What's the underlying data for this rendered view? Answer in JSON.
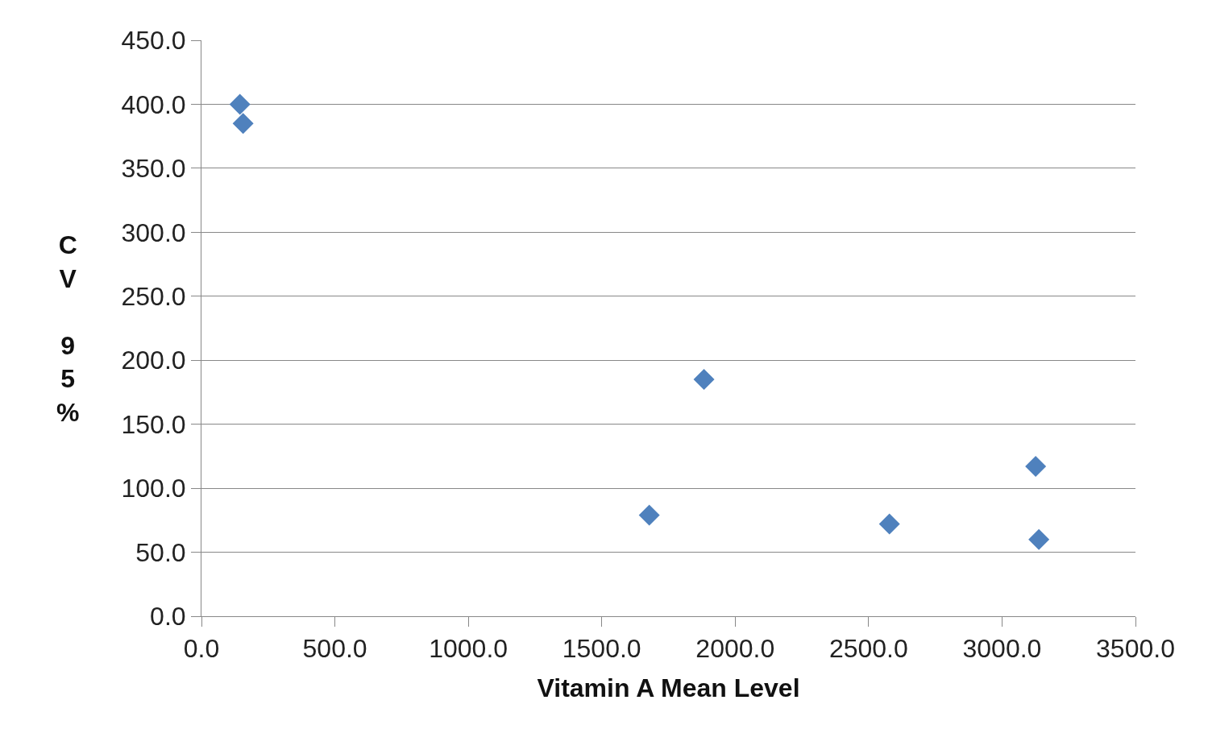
{
  "chart_data": {
    "type": "scatter",
    "xlabel": "Vitamin A Mean Level",
    "ylabel": "CV 95%",
    "x": [
      144,
      156,
      1678,
      1883,
      2578,
      3126,
      3138
    ],
    "series": [
      {
        "color": "#4f81bd",
        "values": [
          400,
          385,
          79,
          185,
          72,
          117,
          60
        ]
      }
    ],
    "xlim": [
      0,
      3500
    ],
    "ylim": [
      0,
      450
    ],
    "xticks": [
      {
        "value": 0,
        "label": "0.0"
      },
      {
        "value": 500,
        "label": "500.0"
      },
      {
        "value": 1000,
        "label": "1000.0"
      },
      {
        "value": 1500,
        "label": "1500.0"
      },
      {
        "value": 2000,
        "label": "2000.0"
      },
      {
        "value": 2500,
        "label": "2500.0"
      },
      {
        "value": 3000,
        "label": "3000.0"
      },
      {
        "value": 3500,
        "label": "3500.0"
      }
    ],
    "yticks": [
      {
        "value": 0,
        "label": "0.0"
      },
      {
        "value": 50,
        "label": "50.0"
      },
      {
        "value": 100,
        "label": "100.0"
      },
      {
        "value": 150,
        "label": "150.0"
      },
      {
        "value": 200,
        "label": "200.0"
      },
      {
        "value": 250,
        "label": "250.0"
      },
      {
        "value": 300,
        "label": "300.0"
      },
      {
        "value": 350,
        "label": "350.0"
      },
      {
        "value": 400,
        "label": "400.0"
      },
      {
        "value": 450,
        "label": "450.0"
      }
    ],
    "grid": "y",
    "marker": "diamond"
  }
}
